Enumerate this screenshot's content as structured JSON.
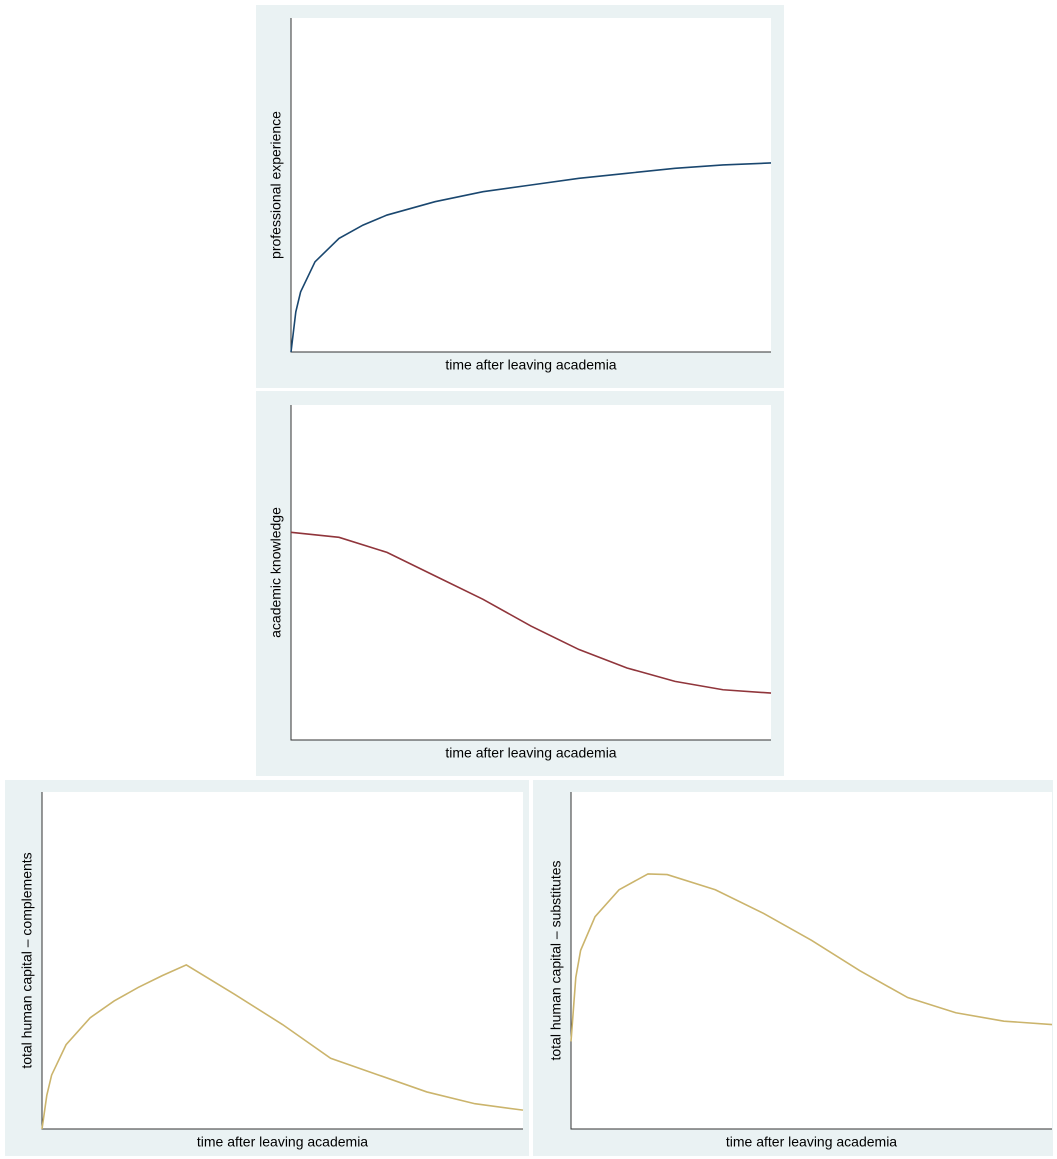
{
  "chart_data": [
    {
      "type": "line",
      "x_label": "time after leaving academia",
      "y_label": "professional experience",
      "x": [
        0,
        1,
        2,
        5,
        10,
        15,
        20,
        30,
        40,
        50,
        60,
        70,
        80,
        90,
        100
      ],
      "series": [
        {
          "color": "#1a476f",
          "values": [
            0,
            12,
            18,
            27,
            34,
            38,
            41,
            45,
            48,
            50,
            52,
            53.5,
            55,
            56,
            56.6
          ]
        }
      ],
      "xlim": [
        0,
        100
      ],
      "ylim": [
        0,
        100
      ]
    },
    {
      "type": "line",
      "x_label": "time after leaving academia",
      "y_label": "academic knowledge",
      "x": [
        0,
        10,
        20,
        30,
        40,
        50,
        60,
        70,
        80,
        90,
        100
      ],
      "series": [
        {
          "color": "#90353b",
          "values": [
            62,
            60.5,
            56,
            49,
            42,
            34,
            27,
            21.5,
            17.5,
            15,
            14
          ]
        }
      ],
      "xlim": [
        0,
        100
      ],
      "ylim": [
        0,
        100
      ]
    },
    {
      "type": "line",
      "x_label": "time after leaving academia",
      "y_label": "total human capital – complements",
      "x": [
        0,
        1,
        2,
        5,
        10,
        15,
        20,
        25,
        30,
        40,
        50,
        60,
        70,
        80,
        90,
        100
      ],
      "series": [
        {
          "color": "#cbb46c",
          "values": [
            0,
            10,
            16,
            25,
            33,
            38,
            42,
            45.5,
            48.7,
            40,
            31,
            21,
            16,
            11,
            7.5,
            5.6
          ]
        }
      ],
      "xlim": [
        0,
        100
      ],
      "ylim": [
        0,
        100
      ]
    },
    {
      "type": "line",
      "x_label": "time after leaving academia",
      "y_label": "total human capital – substitutes",
      "x": [
        0,
        1,
        2,
        5,
        10,
        16,
        20,
        30,
        40,
        50,
        60,
        70,
        80,
        90,
        100
      ],
      "series": [
        {
          "color": "#cbb46c",
          "values": [
            26,
            45,
            53,
            63,
            71,
            75.7,
            75.5,
            71,
            64,
            56,
            47,
            39,
            34.5,
            32,
            31
          ]
        }
      ],
      "xlim": [
        0,
        100
      ],
      "ylim": [
        0,
        100
      ]
    }
  ]
}
